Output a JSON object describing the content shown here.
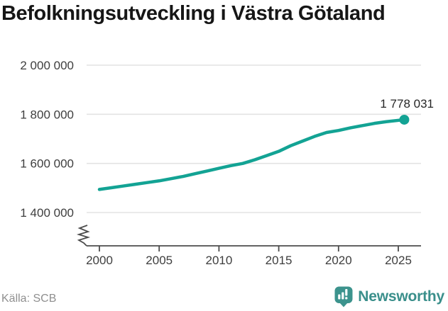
{
  "title": "Befolkningsutveckling i Västra Götaland",
  "chart_data": {
    "type": "line",
    "title": "Befolkningsutveckling i Västra Götaland",
    "x": [
      2000,
      2001,
      2002,
      2003,
      2004,
      2005,
      2006,
      2007,
      2008,
      2009,
      2010,
      2011,
      2012,
      2013,
      2014,
      2015,
      2016,
      2017,
      2018,
      2019,
      2020,
      2021,
      2022,
      2023,
      2024,
      2025.5
    ],
    "values": [
      1494000,
      1501000,
      1508000,
      1515000,
      1522000,
      1529000,
      1538000,
      1547000,
      1558000,
      1569000,
      1580000,
      1591000,
      1600000,
      1615000,
      1632000,
      1649000,
      1672000,
      1691000,
      1710000,
      1726000,
      1734000,
      1745000,
      1754000,
      1763000,
      1770000,
      1778031
    ],
    "end_value": 1778031,
    "end_label": "1 778 031",
    "xlim": [
      2000,
      2025
    ],
    "ylim": [
      1400000,
      2000000
    ],
    "xticks": [
      2000,
      2005,
      2010,
      2015,
      2020,
      2025
    ],
    "xtick_labels": [
      "2000",
      "2005",
      "2010",
      "2015",
      "2020",
      "2025"
    ],
    "ytick_values": [
      1400000,
      1600000,
      1800000,
      2000000
    ],
    "ytick_labels": [
      "1 400 000",
      "1 600 000",
      "1 800 000",
      "2 000 000"
    ],
    "grid": true,
    "axis_break": true,
    "legend": "none",
    "line_color": "#13A394",
    "grid_color": "#E3E3E3",
    "axis_color": "#4D4D4D",
    "label_color": "#3E3E3E",
    "end_label_color": "#262626"
  },
  "footer": {
    "source": "Källa: SCB",
    "brand": "Newsworthy",
    "brand_color": "#3A8F8B",
    "logo_color": "#3C938D"
  }
}
